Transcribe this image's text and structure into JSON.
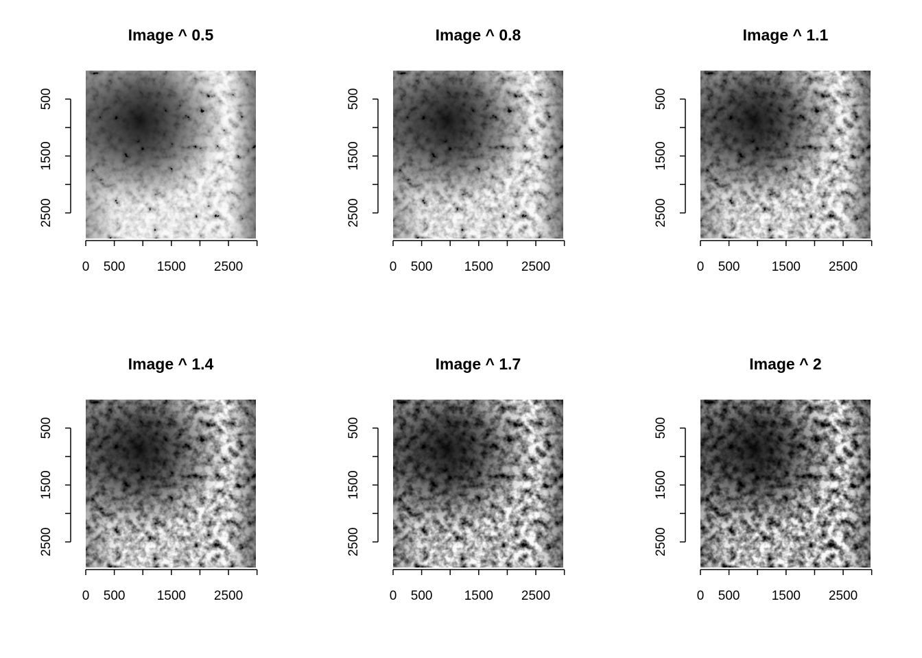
{
  "chart_data": [
    {
      "type": "image",
      "title": "Image ^ 0.5",
      "xlim": [
        0,
        2980
      ],
      "ylim": [
        2950,
        0
      ],
      "xticks": [
        0,
        500,
        {
          "value": 1000,
          "label": null
        },
        1500,
        {
          "value": 2000,
          "label": null
        },
        2500,
        {
          "value": 3000,
          "label": null
        }
      ],
      "yticks": [
        500,
        {
          "value": 1000,
          "label": null
        },
        1500,
        {
          "value": 2000,
          "label": null
        },
        2500
      ]
    },
    {
      "type": "image",
      "title": "Image ^ 0.8",
      "xlim": [
        0,
        2980
      ],
      "ylim": [
        2950,
        0
      ],
      "xticks": [
        0,
        500,
        {
          "value": 1000,
          "label": null
        },
        1500,
        {
          "value": 2000,
          "label": null
        },
        2500,
        {
          "value": 3000,
          "label": null
        }
      ],
      "yticks": [
        500,
        {
          "value": 1000,
          "label": null
        },
        1500,
        {
          "value": 2000,
          "label": null
        },
        2500
      ]
    },
    {
      "type": "image",
      "title": "Image ^ 1.1",
      "xlim": [
        0,
        2980
      ],
      "ylim": [
        2950,
        0
      ],
      "xticks": [
        0,
        500,
        {
          "value": 1000,
          "label": null
        },
        1500,
        {
          "value": 2000,
          "label": null
        },
        2500,
        {
          "value": 3000,
          "label": null
        }
      ],
      "yticks": [
        500,
        {
          "value": 1000,
          "label": null
        },
        1500,
        {
          "value": 2000,
          "label": null
        },
        2500
      ]
    },
    {
      "type": "image",
      "title": "Image ^ 1.4",
      "xlim": [
        0,
        2980
      ],
      "ylim": [
        2950,
        0
      ],
      "xticks": [
        0,
        500,
        {
          "value": 1000,
          "label": null
        },
        1500,
        {
          "value": 2000,
          "label": null
        },
        2500,
        {
          "value": 3000,
          "label": null
        }
      ],
      "yticks": [
        500,
        {
          "value": 1000,
          "label": null
        },
        1500,
        {
          "value": 2000,
          "label": null
        },
        2500
      ]
    },
    {
      "type": "image",
      "title": "Image ^ 1.7",
      "xlim": [
        0,
        2980
      ],
      "ylim": [
        2950,
        0
      ],
      "xticks": [
        0,
        500,
        {
          "value": 1000,
          "label": null
        },
        1500,
        {
          "value": 2000,
          "label": null
        },
        2500,
        {
          "value": 3000,
          "label": null
        }
      ],
      "yticks": [
        500,
        {
          "value": 1000,
          "label": null
        },
        1500,
        {
          "value": 2000,
          "label": null
        },
        2500
      ]
    },
    {
      "type": "image",
      "title": "Image ^ 2",
      "xlim": [
        0,
        2980
      ],
      "ylim": [
        2950,
        0
      ],
      "xticks": [
        0,
        500,
        {
          "value": 1000,
          "label": null
        },
        1500,
        {
          "value": 2000,
          "label": null
        },
        2500,
        {
          "value": 3000,
          "label": null
        }
      ],
      "yticks": [
        500,
        {
          "value": 1000,
          "label": null
        },
        1500,
        {
          "value": 2000,
          "label": null
        },
        2500
      ]
    }
  ]
}
